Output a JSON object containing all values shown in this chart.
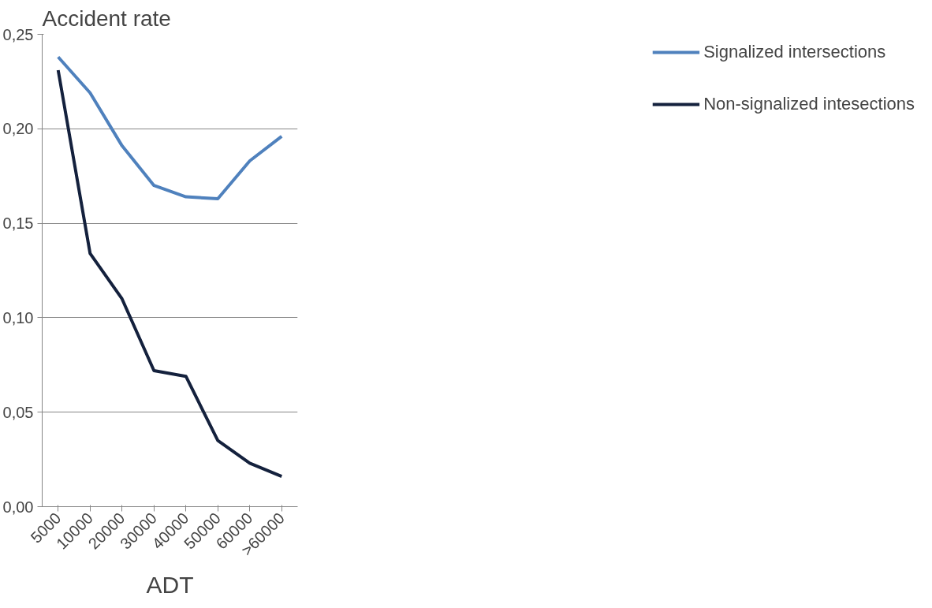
{
  "chart_data": {
    "type": "line",
    "ylabel": "Accident rate",
    "xlabel": "ADT",
    "categories": [
      "5000",
      "10000",
      "20000",
      "30000",
      "40000",
      "50000",
      "60000",
      ">60000"
    ],
    "series": [
      {
        "name": "Signalized intersections",
        "color": "#4f81bd",
        "values": [
          0.238,
          0.219,
          0.191,
          0.17,
          0.164,
          0.163,
          0.183,
          0.196
        ]
      },
      {
        "name": "Non-signalized intesections",
        "color": "#14213d",
        "values": [
          0.231,
          0.134,
          0.11,
          0.072,
          0.069,
          0.035,
          0.023,
          0.016
        ]
      }
    ],
    "ylim": [
      0,
      0.25
    ],
    "yticks": [
      {
        "value": 0,
        "label": "0,00"
      },
      {
        "value": 0.05,
        "label": "0,05"
      },
      {
        "value": 0.1,
        "label": "0,10"
      },
      {
        "value": 0.15,
        "label": "0,15"
      },
      {
        "value": 0.2,
        "label": "0,20"
      },
      {
        "value": 0.25,
        "label": "0,25"
      }
    ],
    "grid": "y",
    "legend": "right",
    "marker": "none",
    "line_style": "solid"
  }
}
